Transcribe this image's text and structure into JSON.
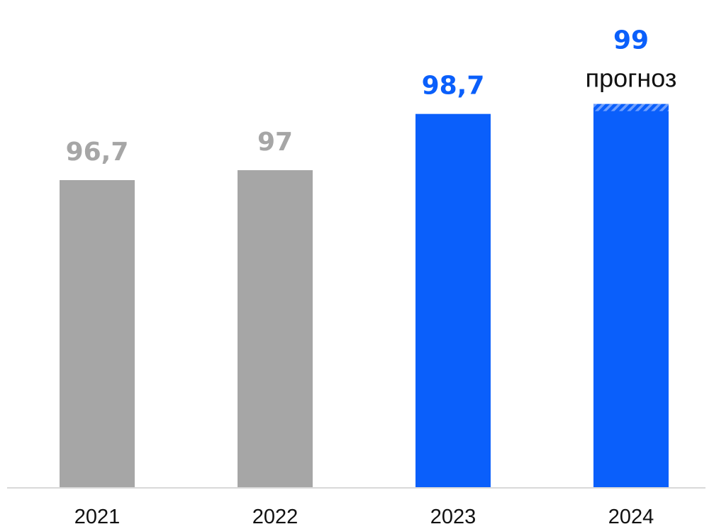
{
  "chart_data": {
    "type": "bar",
    "categories": [
      "2021",
      "2022",
      "2023",
      "2024"
    ],
    "values": [
      96.7,
      97,
      98.7,
      99
    ],
    "value_labels": [
      "96,7",
      "97",
      "98,7",
      "99"
    ],
    "category_notes": [
      "",
      "",
      "",
      "прогноз"
    ],
    "forecast_categories": [
      "2024"
    ],
    "title": "",
    "xlabel": "",
    "ylabel": "",
    "ylim": [
      0,
      100
    ],
    "grid": false,
    "legend": "none",
    "colors": {
      "actual_past": "#a6a6a6",
      "actual_current": "#0a5ffb",
      "forecast": "#0a5ffb",
      "past_label": "#a6a6a6",
      "current_label": "#0a5ffb",
      "axis": "#d9d9d9"
    },
    "highlight_from": "2023"
  }
}
